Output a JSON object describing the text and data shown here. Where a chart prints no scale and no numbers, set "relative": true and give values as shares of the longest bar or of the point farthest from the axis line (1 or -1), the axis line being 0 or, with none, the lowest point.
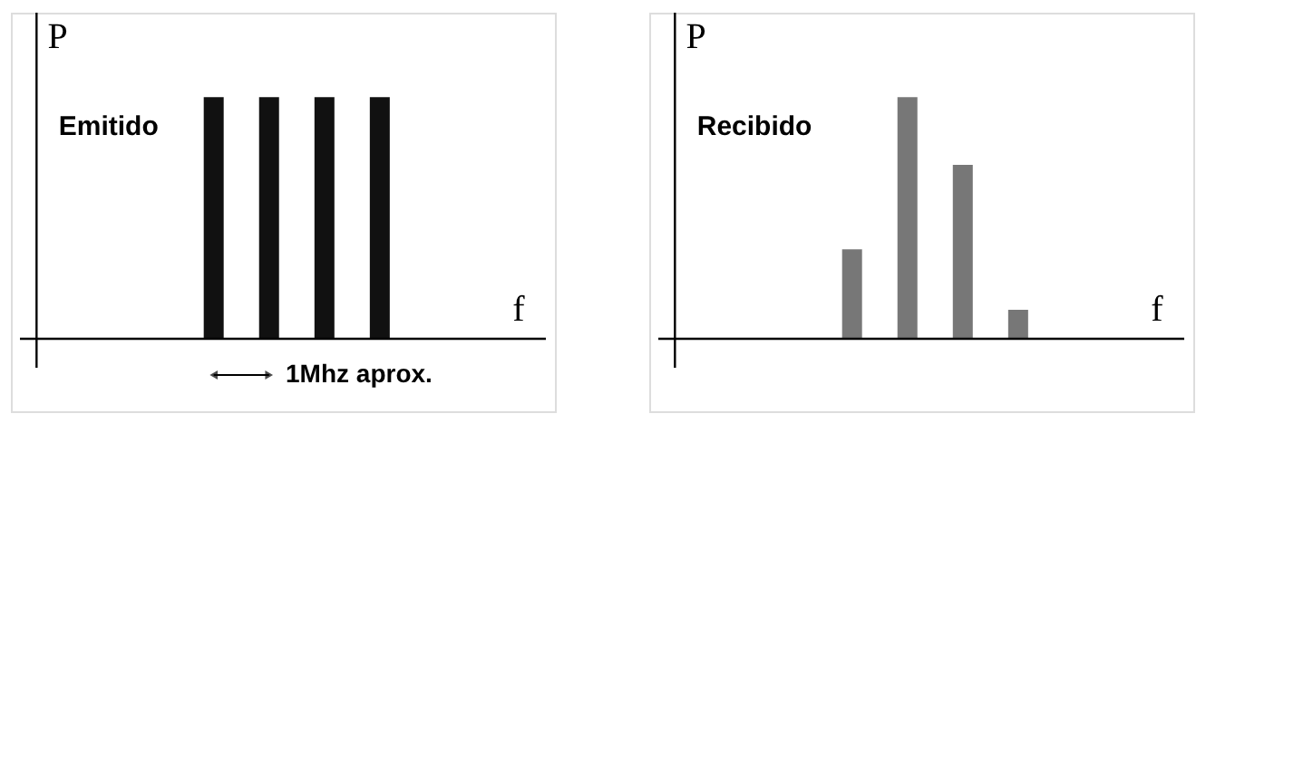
{
  "chart_data": [
    {
      "type": "bar",
      "relative": true,
      "title": "Emitido",
      "ylabel": "P",
      "xlabel": "f",
      "categories": [
        null,
        null,
        null,
        null
      ],
      "series": [
        {
          "color": "#111111",
          "values": [
            1,
            1,
            1,
            1
          ]
        }
      ],
      "annotations": [
        "1Mhz aprox."
      ]
    },
    {
      "type": "bar",
      "relative": true,
      "title": "Recibido",
      "ylabel": "P",
      "xlabel": "f",
      "categories": [
        null,
        null,
        null,
        null
      ],
      "series": [
        {
          "color": "#777777",
          "values": [
            0.37,
            1,
            0.72,
            0.12
          ]
        }
      ]
    }
  ]
}
